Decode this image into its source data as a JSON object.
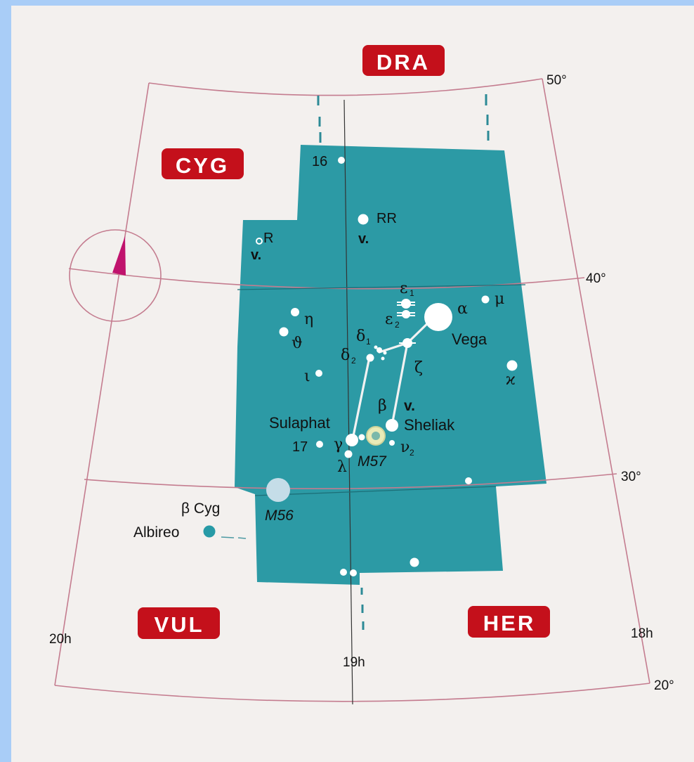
{
  "neighbors": {
    "dra": "DRA",
    "cyg": "CYG",
    "vul": "VUL",
    "her": "HER"
  },
  "grid": {
    "dec_50": "50°",
    "dec_40": "40°",
    "dec_30": "30°",
    "dec_20": "20°",
    "ra_20h": "20h",
    "ra_19h": "19h",
    "ra_18h": "18h"
  },
  "stars": {
    "n16": "16",
    "rr": "RR",
    "rr_var": "v.",
    "r": "R",
    "r_var": "v.",
    "eta": "η",
    "theta": "ϑ",
    "iota": "ι",
    "epsilon1": "ε",
    "epsilon1_sub": "1",
    "epsilon2": "ε",
    "epsilon2_sub": "2",
    "delta1": "δ",
    "delta1_sub": "1",
    "delta2": "δ",
    "delta2_sub": "2",
    "zeta": "ζ",
    "alpha": "α",
    "vega": "Vega",
    "mu": "μ",
    "kappa": "ϰ",
    "beta": "β",
    "beta_var": "v.",
    "sheliak": "Sheliak",
    "sulaphat": "Sulaphat",
    "gamma": "γ",
    "n17": "17",
    "lambda": "λ",
    "nu2": "ν",
    "nu2_sub": "2",
    "beta_cyg": "β Cyg",
    "albireo": "Albireo"
  },
  "objects": {
    "m57": "M57",
    "m56": "M56"
  },
  "colors": {
    "constellation_fill": "#2c9aa5",
    "label_red": "#c4101b",
    "grid_line": "#c47c8f",
    "pointer": "#c0136d",
    "paper": "#f3f0ee"
  }
}
